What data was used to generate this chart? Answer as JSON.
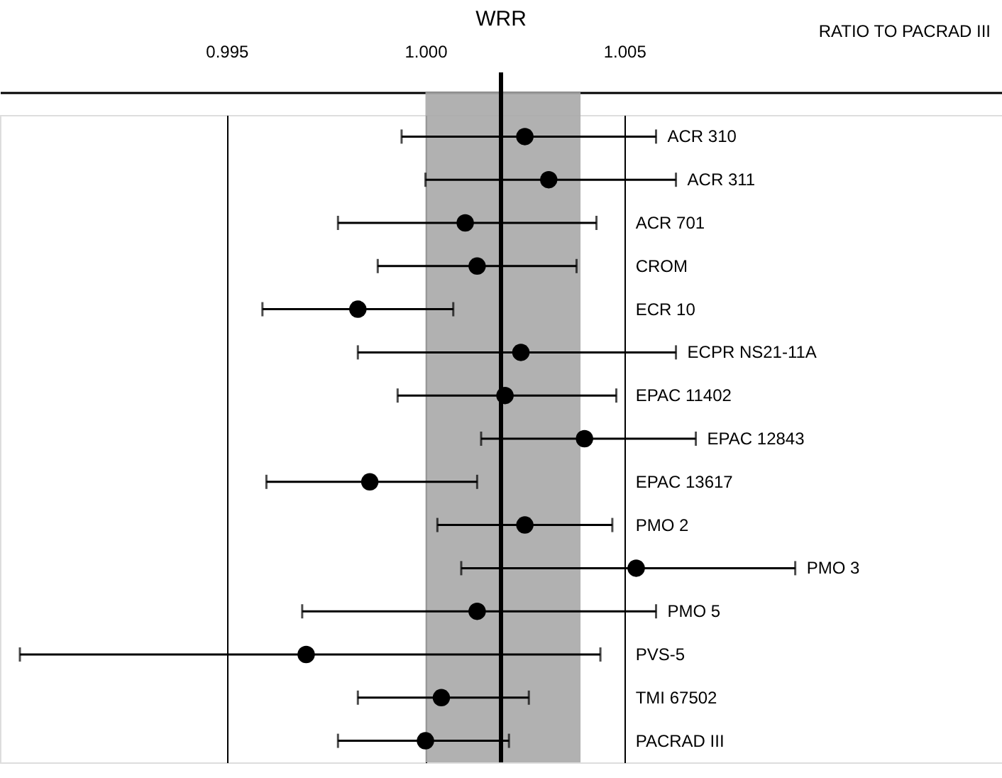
{
  "chart_data": {
    "type": "scatter",
    "orientation": "horizontal",
    "xlabel": "RATIO TO PACRAD III",
    "categories": [
      "ACR 310",
      "ACR 311",
      "ACR 701",
      "CROM",
      "ECR 10",
      "ECPR NS21-11A",
      "EPAC 11402",
      "EPAC 12843",
      "EPAC 13617",
      "PMO 2",
      "PMO 3",
      "PMO 5",
      "PVS-5",
      "TMI 67502",
      "PACRAD III"
    ],
    "series": [
      {
        "color": "#000000",
        "values": [
          1.0025,
          1.0031,
          1.001,
          1.0013,
          0.9983,
          1.0024,
          1.002,
          1.004,
          0.9986,
          1.0025,
          1.0053,
          1.0013,
          0.997,
          1.0004,
          1.0
        ],
        "errors": [
          [
            0.9994,
            1.0058
          ],
          [
            1.0,
            1.0063
          ],
          [
            0.9978,
            1.0043
          ],
          [
            0.9988,
            1.0038
          ],
          [
            0.9959,
            1.0007
          ],
          [
            0.9983,
            1.0063
          ],
          [
            0.9993,
            1.0048
          ],
          [
            1.0014,
            1.0068
          ],
          [
            0.996,
            1.0013
          ],
          [
            1.0003,
            1.0047
          ],
          [
            1.0009,
            1.0093
          ],
          [
            0.9969,
            1.0058
          ],
          [
            0.9898,
            1.0044
          ],
          [
            0.9983,
            1.0026
          ],
          [
            0.9978,
            1.0021
          ]
        ]
      }
    ],
    "xlim": [
      0.9893,
      1.0145
    ],
    "xticks": [
      {
        "value": 0.995,
        "label": "0.995"
      },
      {
        "value": 1.0,
        "label": "1.000"
      },
      {
        "value": 1.005,
        "label": "1.005"
      }
    ],
    "grid": "x",
    "marker": "circle",
    "ref_lines": [
      {
        "axis": "x",
        "value": 1.0019,
        "label": "WRR",
        "color": "#000000"
      }
    ],
    "bands": [
      {
        "axis": "x",
        "from": 1.0,
        "to": 1.0039,
        "color": "#a8a8a8"
      }
    ]
  }
}
